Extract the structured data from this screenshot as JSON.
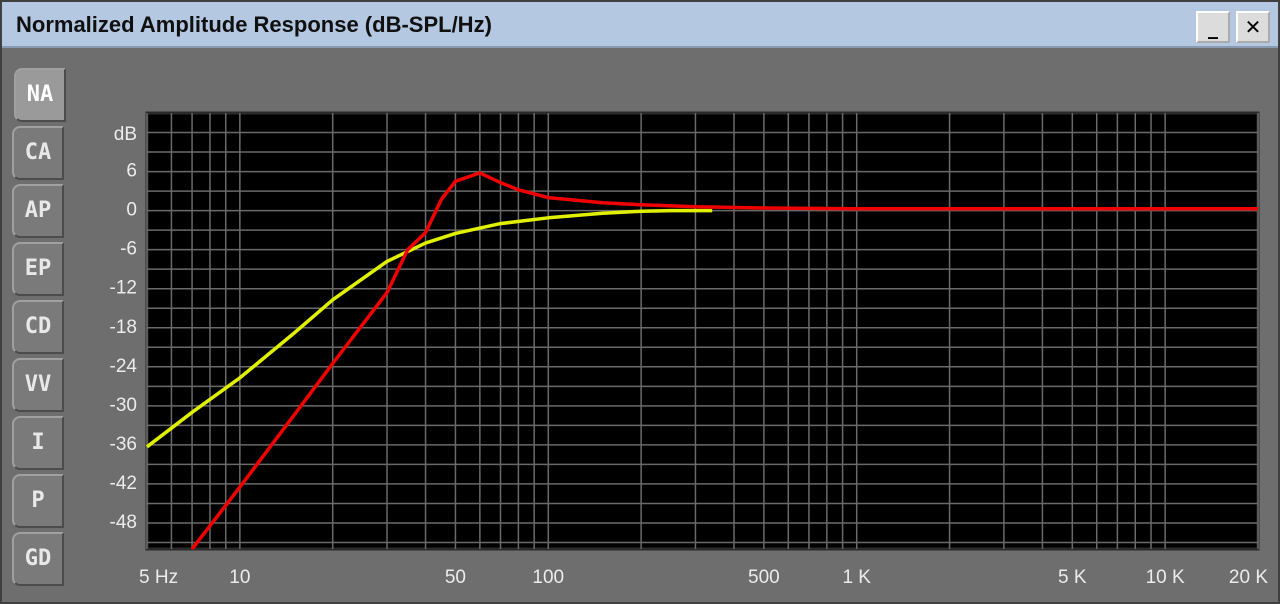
{
  "window": {
    "title": "Normalized Amplitude Response (dB-SPL/Hz)",
    "tabs": [
      "NA",
      "CA",
      "AP",
      "EP",
      "CD",
      "VV",
      "I",
      "P",
      "GD"
    ],
    "selected_tab_index": 0
  },
  "chart_data": {
    "type": "line",
    "x_log_scale": true,
    "y_label": "dB",
    "xlim": [
      5,
      20000
    ],
    "xticks": [
      {
        "value": 5,
        "label": "5 Hz"
      },
      10,
      50,
      100,
      500,
      {
        "value": 1000,
        "label": "1 K"
      },
      {
        "value": 5000,
        "label": "5 K"
      },
      {
        "value": 10000,
        "label": "10 K"
      },
      {
        "value": 20000,
        "label": "20 K"
      }
    ],
    "xgrid": [
      5,
      6,
      7,
      8,
      9,
      10,
      20,
      30,
      40,
      50,
      60,
      70,
      80,
      90,
      100,
      200,
      300,
      400,
      500,
      600,
      700,
      800,
      900,
      1000,
      2000,
      3000,
      4000,
      5000,
      6000,
      7000,
      8000,
      9000,
      10000,
      20000
    ],
    "ylim": [
      -52,
      15
    ],
    "yticks": [
      6,
      0,
      -6,
      -12,
      -18,
      -24,
      -30,
      -36,
      -42,
      -48
    ],
    "ygrid": [
      12,
      9,
      6,
      3,
      0,
      -3,
      -6,
      -9,
      -12,
      -15,
      -18,
      -21,
      -24,
      -27,
      -30,
      -33,
      -36,
      -39,
      -42,
      -45,
      -48,
      -51
    ],
    "series": [
      {
        "color": "#e0f000",
        "x": [
          5,
          7,
          10,
          15,
          20,
          30,
          40,
          50,
          70,
          100,
          150,
          200,
          250,
          340
        ],
        "values": [
          -36.3,
          -31,
          -25.7,
          -18.8,
          -13.7,
          -7.8,
          -5,
          -3.5,
          -2,
          -1.1,
          -0.4,
          -0.1,
          0,
          0
        ]
      },
      {
        "color": "#f00000",
        "x": [
          7,
          10,
          15,
          20,
          30,
          35,
          40,
          45,
          50,
          60,
          70,
          80,
          100,
          150,
          200,
          300,
          500,
          1000,
          20000
        ],
        "values": [
          -52,
          -42.5,
          -31.4,
          -23.5,
          -12.6,
          -6,
          -3.4,
          1.7,
          4.5,
          5.8,
          4.3,
          3.2,
          2,
          1.2,
          0.9,
          0.6,
          0.4,
          0.3,
          0.3
        ]
      }
    ]
  }
}
